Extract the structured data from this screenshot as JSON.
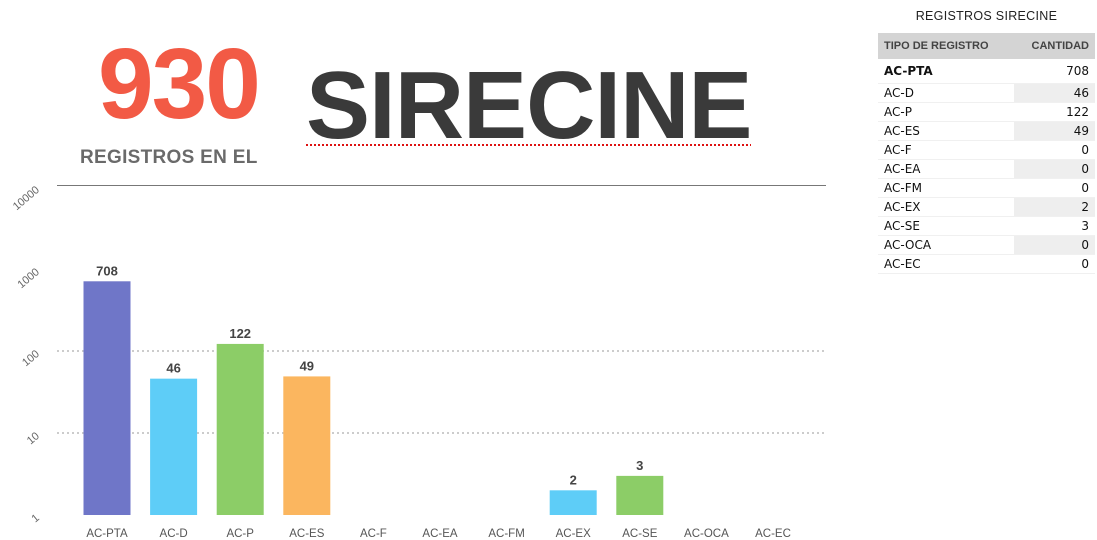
{
  "header": {
    "count": "930",
    "subtitle": "REGISTROS EN EL",
    "title": "SIRECINE"
  },
  "table": {
    "title": "REGISTROS SIRECINE",
    "columns": [
      "TIPO DE REGISTRO",
      "CANTIDAD"
    ],
    "rows": [
      [
        "AC-PTA",
        "708"
      ],
      [
        "AC-D",
        "46"
      ],
      [
        "AC-P",
        "122"
      ],
      [
        "AC-ES",
        "49"
      ],
      [
        "AC-F",
        "0"
      ],
      [
        "AC-EA",
        "0"
      ],
      [
        "AC-FM",
        "0"
      ],
      [
        "AC-EX",
        "2"
      ],
      [
        "AC-SE",
        "3"
      ],
      [
        "AC-OCA",
        "0"
      ],
      [
        "AC-EC",
        "0"
      ]
    ]
  },
  "chart_data": {
    "type": "bar",
    "y_scale": "log",
    "ylim": [
      1,
      10000
    ],
    "y_ticks": [
      "1",
      "10",
      "100",
      "1000",
      "10000"
    ],
    "grid": "dotted horizontal",
    "categories": [
      "AC-PTA",
      "AC-D",
      "AC-P",
      "AC-ES",
      "AC-F",
      "AC-EA",
      "AC-FM",
      "AC-EX",
      "AC-SE",
      "AC-OCA",
      "AC-EC"
    ],
    "values": [
      708,
      46,
      122,
      49,
      0,
      0,
      0,
      2,
      3,
      0,
      0
    ],
    "data_labels": [
      "708",
      "46",
      "122",
      "49",
      "",
      "",
      "",
      "2",
      "3",
      "",
      ""
    ],
    "colors": [
      "#6f76c8",
      "#5ecdf7",
      "#8ccd67",
      "#fbb65f",
      "#6f76c8",
      "#5ecdf7",
      "#8ccd67",
      "#5ecdf7",
      "#8ccd67",
      "#fbb65f",
      "#6f76c8"
    ]
  }
}
